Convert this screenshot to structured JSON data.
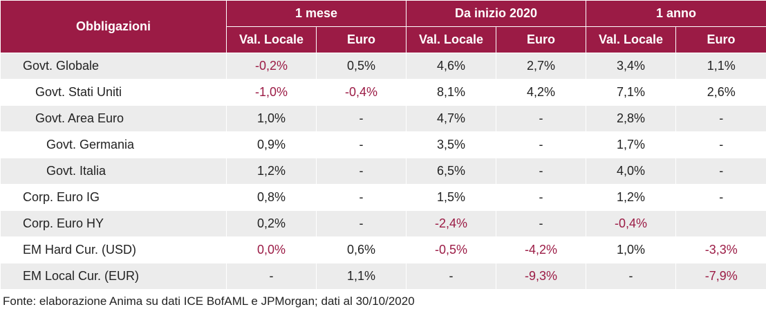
{
  "header": {
    "row_label": "Obbligazioni",
    "groups": [
      "1 mese",
      "Da inizio 2020",
      "1 anno"
    ],
    "sub": [
      "Val. Locale",
      "Euro",
      "Val. Locale",
      "Euro",
      "Val. Locale",
      "Euro"
    ]
  },
  "colors": {
    "accent": "#9b1b45",
    "stripe": "#ececec",
    "negative_text": "#9b1b45"
  },
  "rows": [
    {
      "label": "Govt. Globale",
      "level": 0,
      "cells": [
        "-0,2%",
        "0,5%",
        "4,6%",
        "2,7%",
        "3,4%",
        "1,1%"
      ]
    },
    {
      "label": "Govt. Stati Uniti",
      "level": 1,
      "cells": [
        "-1,0%",
        "-0,4%",
        "8,1%",
        "4,2%",
        "7,1%",
        "2,6%"
      ]
    },
    {
      "label": "Govt. Area Euro",
      "level": 1,
      "cells": [
        "1,0%",
        "-",
        "4,7%",
        "-",
        "2,8%",
        "-"
      ]
    },
    {
      "label": "Govt. Germania",
      "level": 2,
      "cells": [
        "0,9%",
        "-",
        "3,5%",
        "-",
        "1,7%",
        "-"
      ]
    },
    {
      "label": "Govt. Italia",
      "level": 2,
      "cells": [
        "1,2%",
        "-",
        "6,5%",
        "-",
        "4,0%",
        "-"
      ]
    },
    {
      "label": "Corp. Euro IG",
      "level": 0,
      "cells": [
        "0,8%",
        "-",
        "1,5%",
        "-",
        "1,2%",
        "-"
      ]
    },
    {
      "label": "Corp. Euro HY",
      "level": 0,
      "cells": [
        "0,2%",
        "-",
        "-2,4%",
        "-",
        "-0,4%",
        ""
      ]
    },
    {
      "label": "EM Hard Cur. (USD)",
      "level": 0,
      "cells": [
        "0,0%",
        "0,6%",
        "-0,5%",
        "-4,2%",
        "1,0%",
        "-3,3%"
      ]
    },
    {
      "label": "EM Local Cur. (EUR)",
      "level": 0,
      "cells": [
        "-",
        "1,1%",
        "-",
        "-9,3%",
        "-",
        "-7,9%"
      ]
    }
  ],
  "negative_cells": [
    [
      0,
      0
    ],
    [
      1,
      0
    ],
    [
      1,
      1
    ],
    [
      6,
      2
    ],
    [
      6,
      4
    ],
    [
      7,
      0
    ],
    [
      7,
      2
    ],
    [
      7,
      3
    ],
    [
      7,
      5
    ],
    [
      8,
      3
    ],
    [
      8,
      5
    ]
  ],
  "footnote": "Fonte: elaborazione Anima su dati ICE BofAML e JPMorgan; dati al 30/10/2020"
}
